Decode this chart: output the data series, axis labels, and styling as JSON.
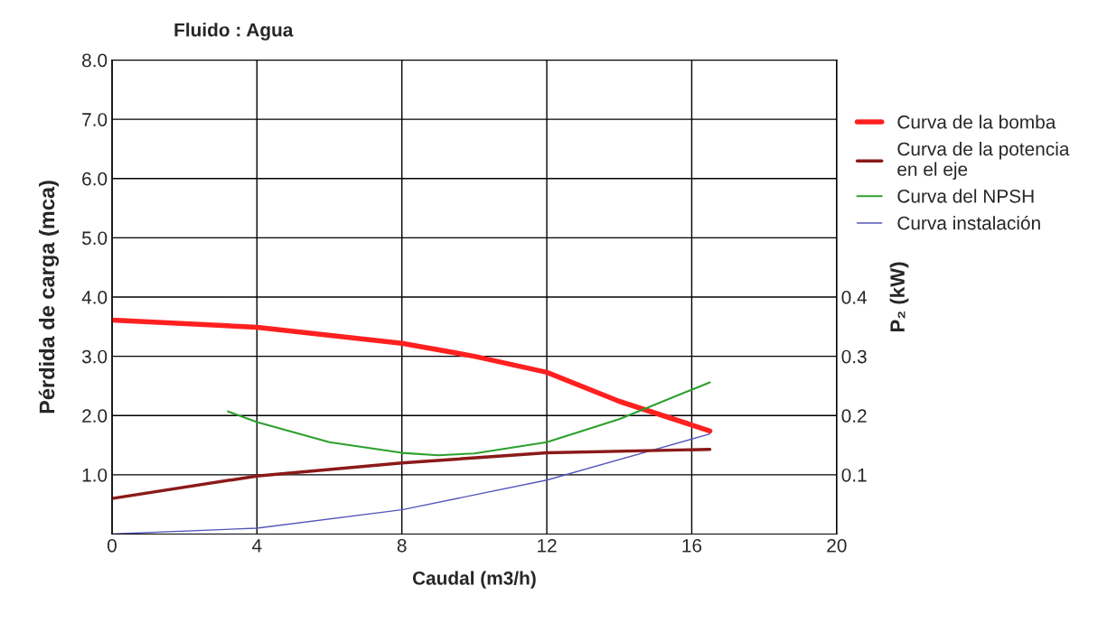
{
  "chart_data": {
    "type": "line",
    "title": "Fluido : Agua",
    "xlabel": "Caudal (m3/h)",
    "ylabel": "Pérdida de carga (mca)",
    "y2label": "P₂ (kW)",
    "xlim": [
      0,
      20
    ],
    "xticks": [
      0,
      4,
      8,
      12,
      16,
      20
    ],
    "ylim": [
      0,
      8
    ],
    "yticks": [
      {
        "value": 1,
        "label": "1.0"
      },
      {
        "value": 2,
        "label": "2.0"
      },
      {
        "value": 3,
        "label": "3.0"
      },
      {
        "value": 4,
        "label": "4.0"
      },
      {
        "value": 5,
        "label": "5.0"
      },
      {
        "value": 6,
        "label": "6.0"
      },
      {
        "value": 7,
        "label": "7.0"
      },
      {
        "value": 8,
        "label": "8.0"
      }
    ],
    "y2lim": [
      0,
      0.8
    ],
    "y2ticks": [
      0.1,
      0.2,
      0.3,
      0.4
    ],
    "grid": true,
    "legend": "right",
    "series": [
      {
        "name": "Curva de la bomba",
        "color": "#ff2020",
        "x": [
          0,
          4,
          8,
          10,
          12,
          14,
          16.5
        ],
        "values": [
          3.61,
          3.49,
          3.22,
          3.0,
          2.73,
          2.24,
          1.74
        ]
      },
      {
        "name": "Curva de la potencia\nen el eje",
        "color": "#8b1a1a",
        "axis": "y2",
        "x": [
          0,
          4,
          8,
          12,
          16.5
        ],
        "values": [
          0.06,
          0.098,
          0.12,
          0.137,
          0.143
        ]
      },
      {
        "name": "Curva del NPSH",
        "color": "#2ca02c",
        "x": [
          3.2,
          4,
          6,
          8,
          9,
          10,
          12,
          14,
          16.5
        ],
        "values": [
          2.07,
          1.89,
          1.55,
          1.37,
          1.33,
          1.36,
          1.55,
          1.94,
          2.56
        ]
      },
      {
        "name": "Curva instalación",
        "color": "#5555bb",
        "x": [
          0,
          4,
          8,
          12,
          16.5
        ],
        "values": [
          0,
          0.1,
          0.41,
          0.91,
          1.69
        ]
      }
    ]
  }
}
